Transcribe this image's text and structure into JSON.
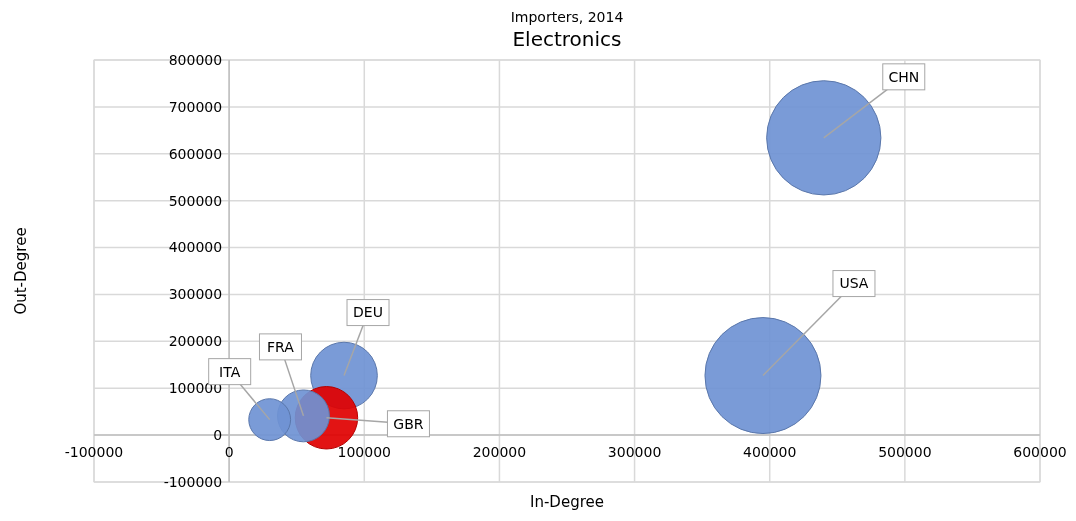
{
  "chart_data": {
    "type": "bubble",
    "title": "Importers, 2014",
    "subtitle": "Electronics",
    "xlabel": "In-Degree",
    "ylabel": "Out-Degree",
    "x": [
      440000,
      395000,
      85000,
      55000,
      30000,
      72000
    ],
    "values": [
      634000,
      127000,
      127000,
      41000,
      33000,
      37000
    ],
    "sizes": [
      0.97,
      1,
      0.33,
      0.2,
      0.13,
      0.29
    ],
    "colors": [
      "#6f93d4",
      "#6f93d4",
      "#6f93d4",
      "#6f93d4",
      "#6f93d4",
      "#e00000"
    ],
    "annotations": [
      {
        "text": "CHN",
        "x": 440000,
        "y": 634000
      },
      {
        "text": "USA",
        "x": 395000,
        "y": 127000
      },
      {
        "text": "DEU",
        "x": 85000,
        "y": 127000
      },
      {
        "text": "FRA",
        "x": 55000,
        "y": 41000
      },
      {
        "text": "ITA",
        "x": 30000,
        "y": 33000
      },
      {
        "text": "GBR",
        "x": 72000,
        "y": 37000
      }
    ],
    "xlim": [
      -100000,
      600000
    ],
    "xticks": [
      -100000,
      0,
      100000,
      200000,
      300000,
      400000,
      500000,
      600000
    ],
    "ylim": [
      -100000,
      800000
    ],
    "yticks": [
      -100000,
      0,
      100000,
      200000,
      300000,
      400000,
      500000,
      600000,
      700000,
      800000
    ],
    "grid": true
  }
}
